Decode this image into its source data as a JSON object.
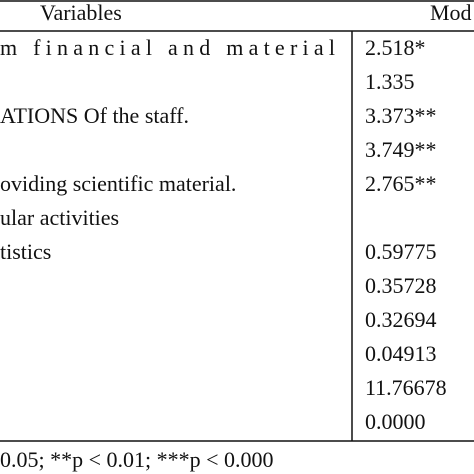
{
  "table": {
    "header": {
      "variables": "Variables",
      "model": "Mod"
    },
    "rows": [
      {
        "variable": "m financial and material",
        "value": "2.518*"
      },
      {
        "value": "1.335"
      },
      {
        "variable": "ATIONS Of the staff.",
        "value": "3.373**"
      },
      {
        "value": "3.749**"
      },
      {
        "variable": "oviding scientific material.",
        "value": "2.765**"
      },
      {
        "variable": "ular activities"
      },
      {
        "variable": "tistics",
        "value": "0.59775"
      },
      {
        "value": "0.35728"
      },
      {
        "value": "0.32694"
      },
      {
        "value": "0.04913"
      },
      {
        "value": "11.76678"
      },
      {
        "value": "0.0000"
      }
    ],
    "footnote": "0.05; **p < 0.01; ***p < 0.000"
  }
}
